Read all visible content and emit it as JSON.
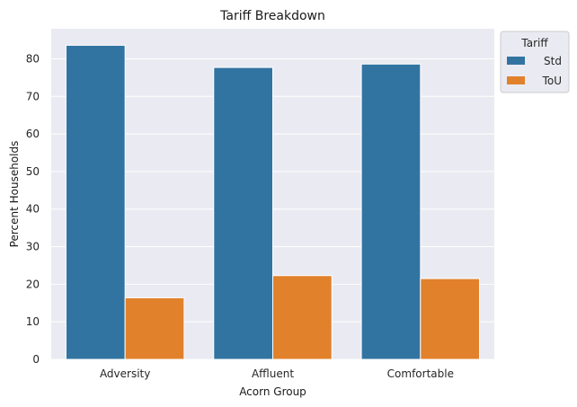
{
  "chart_data": {
    "type": "bar",
    "title": "Tariff Breakdown",
    "xlabel": "Acorn Group",
    "ylabel": "Percent Households",
    "categories": [
      "Adversity",
      "Affluent",
      "Comfortable"
    ],
    "series": [
      {
        "name": "Std",
        "values": [
          83.6,
          77.7,
          78.6
        ],
        "color": "#3274a1"
      },
      {
        "name": "ToU",
        "values": [
          16.4,
          22.3,
          21.5
        ],
        "color": "#e1812c"
      }
    ],
    "ylim": [
      0,
      88
    ],
    "yticks": [
      0,
      10,
      20,
      30,
      40,
      50,
      60,
      70,
      80
    ],
    "grid": true,
    "background": "#eaeaf2",
    "legend": {
      "title": "Tariff",
      "placement": "top-right-outside"
    }
  }
}
